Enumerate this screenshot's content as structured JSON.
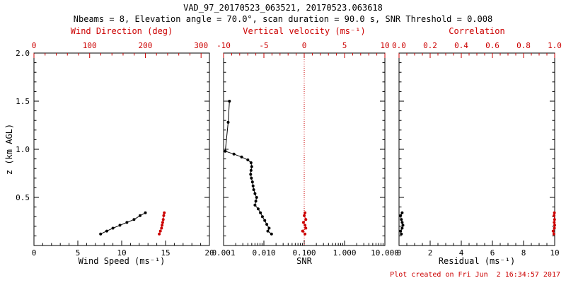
{
  "header": {
    "title": "VAD_97_20170523_063521, 20170523.063618",
    "subtitle": "Nbeams = 8, Elevation angle = 70.0°, scan duration = 90.0 s, SNR Threshold = 0.008"
  },
  "footer": {
    "created": "Plot created on Fri Jun  2 16:34:57 2017"
  },
  "colors": {
    "black": "#000000",
    "red": "#cc0000",
    "background": "#ffffff"
  },
  "y_axis": {
    "label": "z (km AGL)",
    "min": 0,
    "max": 2,
    "ticks": [
      0,
      0.5,
      1.0,
      1.5,
      2.0
    ],
    "tick_labels": [
      "",
      "0.5",
      "1.0",
      "1.5",
      "2.0"
    ],
    "minor": 0.1
  },
  "chart_data": [
    {
      "type": "line",
      "name": "wind",
      "bottom_axis": {
        "label": "Wind Speed (ms⁻¹)",
        "min": 0,
        "max": 20,
        "ticks": [
          0,
          5,
          10,
          15,
          20
        ],
        "tick_labels": [
          "0",
          "5",
          "10",
          "15",
          "20"
        ],
        "minor": 1
      },
      "top_axis": {
        "label": "Wind Direction (deg)",
        "min": 0,
        "max": 315,
        "ticks": [
          0,
          100,
          200,
          300
        ],
        "tick_labels": [
          "0",
          "100",
          "200",
          "300"
        ],
        "minor": 20
      },
      "series": [
        {
          "name": "wind-speed",
          "axis": "bottom",
          "color": "#000000",
          "line": true,
          "marker": true,
          "points": [
            [
              7.6,
              0.12
            ],
            [
              8.3,
              0.15
            ],
            [
              9.0,
              0.18
            ],
            [
              9.8,
              0.21
            ],
            [
              10.6,
              0.24
            ],
            [
              11.4,
              0.27
            ],
            [
              12.1,
              0.31
            ],
            [
              12.7,
              0.34
            ]
          ]
        },
        {
          "name": "wind-direction",
          "axis": "top",
          "color": "#cc0000",
          "line": true,
          "marker": true,
          "points": [
            [
              225,
              0.12
            ],
            [
              227,
              0.15
            ],
            [
              229,
              0.18
            ],
            [
              230,
              0.21
            ],
            [
              231,
              0.24
            ],
            [
              232,
              0.27
            ],
            [
              233,
              0.31
            ],
            [
              234,
              0.34
            ]
          ]
        }
      ]
    },
    {
      "type": "line",
      "name": "snr",
      "bottom_axis": {
        "label": "SNR",
        "scale": "log",
        "min": 0.001,
        "max": 10,
        "ticks": [
          0.001,
          0.01,
          0.1,
          1,
          10
        ],
        "tick_labels": [
          "0.001",
          "0.010",
          "0.100",
          "1.000",
          "10.000"
        ]
      },
      "top_axis": {
        "label": "Vertical velocity (ms⁻¹)",
        "min": -10,
        "max": 10,
        "ticks": [
          -10,
          -5,
          0,
          5,
          10
        ],
        "tick_labels": [
          "-10",
          "-5",
          "0",
          "5",
          "10"
        ],
        "minor": 1
      },
      "ref_line": {
        "axis": "top",
        "value": 0,
        "color": "#cc0000",
        "style": "dotted"
      },
      "series": [
        {
          "name": "snr-profile",
          "axis": "bottom",
          "color": "#000000",
          "line": true,
          "marker": true,
          "points": [
            [
              0.0014,
              1.5
            ],
            [
              0.0013,
              1.28
            ],
            [
              0.0011,
              0.98
            ],
            [
              0.0018,
              0.95
            ],
            [
              0.0028,
              0.92
            ],
            [
              0.004,
              0.89
            ],
            [
              0.0048,
              0.86
            ],
            [
              0.005,
              0.82
            ],
            [
              0.0048,
              0.78
            ],
            [
              0.0047,
              0.74
            ],
            [
              0.0049,
              0.7
            ],
            [
              0.0052,
              0.66
            ],
            [
              0.0054,
              0.62
            ],
            [
              0.0056,
              0.58
            ],
            [
              0.006,
              0.54
            ],
            [
              0.0066,
              0.5
            ],
            [
              0.0063,
              0.46
            ],
            [
              0.006,
              0.42
            ],
            [
              0.0072,
              0.38
            ],
            [
              0.0082,
              0.34
            ],
            [
              0.0092,
              0.3
            ],
            [
              0.0105,
              0.26
            ],
            [
              0.0118,
              0.22
            ],
            [
              0.0135,
              0.18
            ],
            [
              0.0125,
              0.15
            ],
            [
              0.0155,
              0.12
            ]
          ]
        },
        {
          "name": "vertical-velocity",
          "axis": "top",
          "color": "#cc0000",
          "line": true,
          "marker": true,
          "points": [
            [
              0.1,
              0.12
            ],
            [
              -0.2,
              0.15
            ],
            [
              0.2,
              0.18
            ],
            [
              0.1,
              0.21
            ],
            [
              -0.1,
              0.24
            ],
            [
              0.2,
              0.27
            ],
            [
              0.0,
              0.31
            ],
            [
              0.1,
              0.34
            ]
          ]
        }
      ]
    },
    {
      "type": "line",
      "name": "residual",
      "bottom_axis": {
        "label": "Residual (ms⁻¹)",
        "min": 0,
        "max": 10,
        "ticks": [
          0,
          2,
          4,
          6,
          8,
          10
        ],
        "tick_labels": [
          "0",
          "2",
          "4",
          "6",
          "8",
          "10"
        ],
        "minor": 0.5
      },
      "top_axis": {
        "label": "Correlation",
        "min": 0,
        "max": 1,
        "ticks": [
          0,
          0.2,
          0.4,
          0.6,
          0.8,
          1.0
        ],
        "tick_labels": [
          "0.0",
          "0.2",
          "0.4",
          "0.6",
          "0.8",
          "1.0"
        ],
        "minor": 0.05
      },
      "series": [
        {
          "name": "residual-profile",
          "axis": "bottom",
          "color": "#000000",
          "line": true,
          "marker": true,
          "points": [
            [
              0.15,
              0.12
            ],
            [
              0.1,
              0.15
            ],
            [
              0.2,
              0.18
            ],
            [
              0.25,
              0.21
            ],
            [
              0.2,
              0.24
            ],
            [
              0.15,
              0.27
            ],
            [
              0.1,
              0.31
            ],
            [
              0.2,
              0.34
            ]
          ]
        },
        {
          "name": "correlation",
          "axis": "top",
          "color": "#cc0000",
          "line": true,
          "marker": true,
          "points": [
            [
              0.995,
              0.12
            ],
            [
              0.99,
              0.15
            ],
            [
              0.998,
              0.18
            ],
            [
              1.0,
              0.21
            ],
            [
              0.997,
              0.24
            ],
            [
              0.999,
              0.27
            ],
            [
              0.996,
              0.31
            ],
            [
              0.998,
              0.34
            ]
          ]
        }
      ]
    }
  ]
}
